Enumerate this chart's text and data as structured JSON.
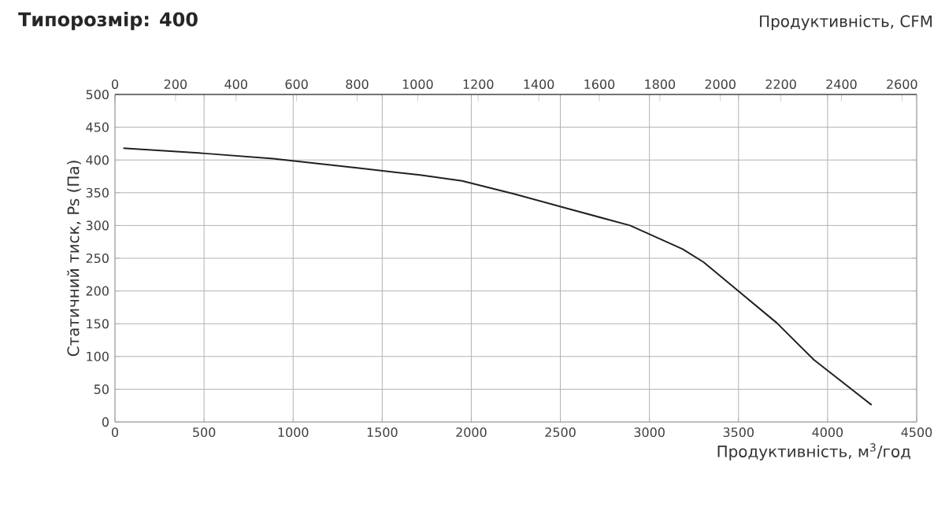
{
  "chart_data": {
    "type": "line",
    "title": "Типорозмір: 400",
    "xlabel": "Продуктивність, м$^{3}$/год",
    "ylabel": "Статичний тиск, Ps (Па)",
    "x2label": "Продуктивність, CFM",
    "xlim": [
      0,
      4500
    ],
    "xticks": [
      0,
      500,
      1000,
      1500,
      2000,
      2500,
      3000,
      3500,
      4000,
      4500
    ],
    "x2lim": [
      0,
      2648.6
    ],
    "x2ticks": [
      0,
      200,
      400,
      600,
      800,
      1000,
      1200,
      1400,
      1600,
      1800,
      2000,
      2200,
      2400,
      2600
    ],
    "ylim": [
      0,
      500
    ],
    "yticks": [
      0,
      50,
      100,
      150,
      200,
      250,
      300,
      350,
      400,
      450,
      500
    ],
    "grid": true,
    "marker": "none",
    "line_style": "solid",
    "series": [
      {
        "color": "#231f20",
        "x": [
          47,
          504,
          887,
          1359,
          1712,
          1948,
          2243,
          2538,
          2891,
          3186,
          3304,
          3481,
          3716,
          3923,
          4247
        ],
        "values": [
          418,
          410,
          402,
          388,
          377,
          368,
          348,
          326,
          300,
          264,
          244,
          204,
          151,
          95,
          26
        ]
      }
    ]
  }
}
